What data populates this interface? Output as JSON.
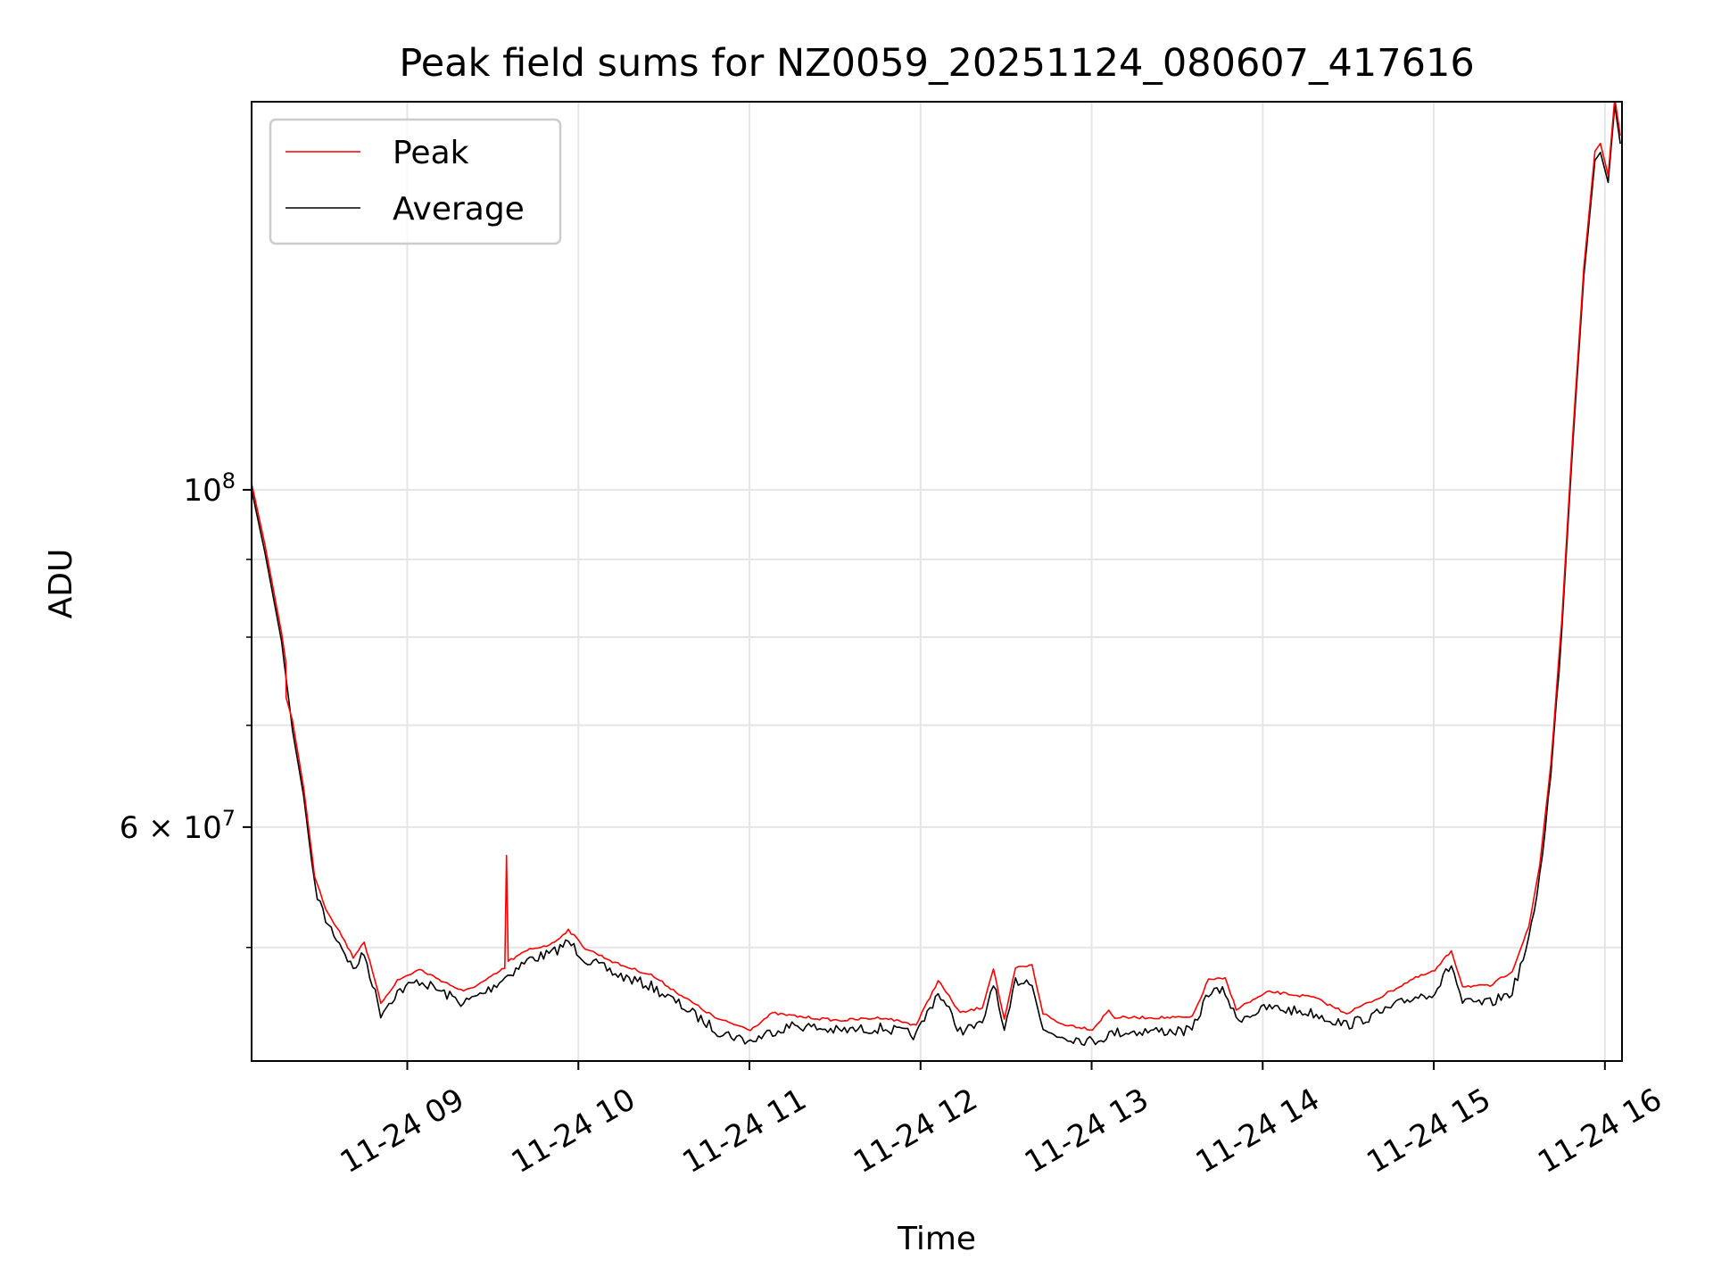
{
  "chart_data": {
    "type": "line",
    "title": "Peak field sums for NZ0059_20251124_080607_417616",
    "xlabel": "Time",
    "ylabel": "ADU",
    "yscale": "log",
    "xlim_hours": [
      8.09,
      16.1
    ],
    "ylim": [
      42100000.0,
      180000000.0
    ],
    "grid": true,
    "legend_location": "upper-left",
    "x_ticks": [
      {
        "hour": 9,
        "label": "11-24 09"
      },
      {
        "hour": 10,
        "label": "11-24 10"
      },
      {
        "hour": 11,
        "label": "11-24 11"
      },
      {
        "hour": 12,
        "label": "11-24 12"
      },
      {
        "hour": 13,
        "label": "11-24 13"
      },
      {
        "hour": 14,
        "label": "11-24 14"
      },
      {
        "hour": 15,
        "label": "11-24 15"
      },
      {
        "hour": 16,
        "label": "11-24 16"
      }
    ],
    "y_major_ticks": [
      {
        "value": 100000000.0,
        "base": "10",
        "exp": "8",
        "label": "10^8"
      },
      {
        "value": 60000000.0,
        "base": "6 × 10",
        "exp": "7",
        "label": "6×10^7"
      }
    ],
    "y_minor_ticks": [
      50000000.0,
      70000000.0,
      80000000.0,
      90000000.0
    ],
    "series": [
      {
        "name": "Peak",
        "color": "#ff0000",
        "x_hours": [
          8.09,
          8.168,
          8.265,
          8.29,
          8.292,
          8.329,
          8.394,
          8.458,
          8.523,
          8.619,
          8.684,
          8.748,
          8.845,
          8.942,
          9.071,
          9.2,
          9.329,
          9.458,
          9.57,
          9.58,
          9.59,
          9.716,
          9.845,
          9.942,
          10.039,
          10.232,
          10.426,
          10.619,
          10.813,
          11.006,
          11.135,
          11.265,
          11.523,
          11.781,
          11.974,
          12.103,
          12.232,
          12.361,
          12.426,
          12.49,
          12.555,
          12.652,
          12.716,
          12.813,
          13.006,
          13.1,
          13.135,
          13.329,
          13.587,
          13.684,
          13.781,
          13.845,
          14.039,
          14.297,
          14.49,
          14.684,
          14.877,
          15.006,
          15.103,
          15.168,
          15.329,
          15.458,
          15.555,
          15.619,
          15.684,
          15.748,
          15.813,
          15.877,
          15.942,
          15.974,
          16.019,
          16.058,
          16.09
        ],
        "values": [
          101000000.0,
          92000000.0,
          80500000.0,
          77000000.0,
          73000000.0,
          70500000.0,
          63700000.0,
          55800000.0,
          53100000.0,
          50900000.0,
          49300000.0,
          50500000.0,
          46000000.0,
          47600000.0,
          48400000.0,
          47600000.0,
          46800000.0,
          47600000.0,
          48500000.0,
          57500000.0,
          49000000.0,
          49900000.0,
          50300000.0,
          51400000.0,
          50000000.0,
          48800000.0,
          48000000.0,
          46400000.0,
          44900000.0,
          44200000.0,
          45300000.0,
          45100000.0,
          44800000.0,
          45000000.0,
          44500000.0,
          47600000.0,
          45300000.0,
          45700000.0,
          48500000.0,
          44800000.0,
          48500000.0,
          48700000.0,
          45300000.0,
          44600000.0,
          44200000.0,
          45500000.0,
          45000000.0,
          45000000.0,
          45000000.0,
          47700000.0,
          47700000.0,
          45600000.0,
          46800000.0,
          46400000.0,
          45300000.0,
          46400000.0,
          47700000.0,
          48300000.0,
          49800000.0,
          47200000.0,
          47200000.0,
          48300000.0,
          51600000.0,
          56700000.0,
          66000000.0,
          82000000.0,
          109000000.0,
          140000000.0,
          167000000.0,
          169000000.0,
          161000000.0,
          181000000.0,
          171000000.0
        ]
      },
      {
        "name": "Average",
        "color": "#000000",
        "x_hours": [
          8.09,
          8.168,
          8.265,
          8.329,
          8.394,
          8.458,
          8.523,
          8.619,
          8.684,
          8.748,
          8.845,
          8.942,
          9.071,
          9.2,
          9.329,
          9.458,
          9.587,
          9.716,
          9.845,
          9.942,
          10.039,
          10.232,
          10.426,
          10.619,
          10.813,
          11.006,
          11.135,
          11.265,
          11.523,
          11.781,
          11.974,
          12.103,
          12.232,
          12.361,
          12.426,
          12.49,
          12.555,
          12.652,
          12.716,
          12.813,
          13.006,
          13.135,
          13.329,
          13.587,
          13.684,
          13.781,
          13.845,
          14.039,
          14.297,
          14.49,
          14.684,
          14.877,
          15.006,
          15.103,
          15.168,
          15.329,
          15.458,
          15.555,
          15.619,
          15.684,
          15.748,
          15.813,
          15.877,
          15.942,
          15.974,
          16.019,
          16.058,
          16.09
        ],
        "values": [
          100000000.0,
          90900000.0,
          79500000.0,
          69500000.0,
          62900000.0,
          55000000.0,
          52300000.0,
          50200000.0,
          48500000.0,
          49700000.0,
          45400000.0,
          46900000.0,
          47700000.0,
          46900000.0,
          46100000.0,
          46900000.0,
          48100000.0,
          49300000.0,
          49700000.0,
          50600000.0,
          49300000.0,
          48100000.0,
          47300000.0,
          45800000.0,
          44200000.0,
          43500000.0,
          44200000.0,
          44600000.0,
          44200000.0,
          44400000.0,
          43900000.0,
          46900000.0,
          44200000.0,
          44600000.0,
          47700000.0,
          43900000.0,
          47700000.0,
          47700000.0,
          44200000.0,
          43900000.0,
          43500000.0,
          44100000.0,
          44200000.0,
          44200000.0,
          46900000.0,
          46900000.0,
          45000000.0,
          45800000.0,
          45400000.0,
          44600000.0,
          45400000.0,
          46500000.0,
          46900000.0,
          48900000.0,
          46100000.0,
          46100000.0,
          46900000.0,
          50600000.0,
          55900000.0,
          65000000.0,
          80800000.0,
          107500000.0,
          138200000.0,
          164700000.0,
          166700000.0,
          159300000.0,
          179100000.0,
          168900000.0
        ]
      }
    ]
  }
}
